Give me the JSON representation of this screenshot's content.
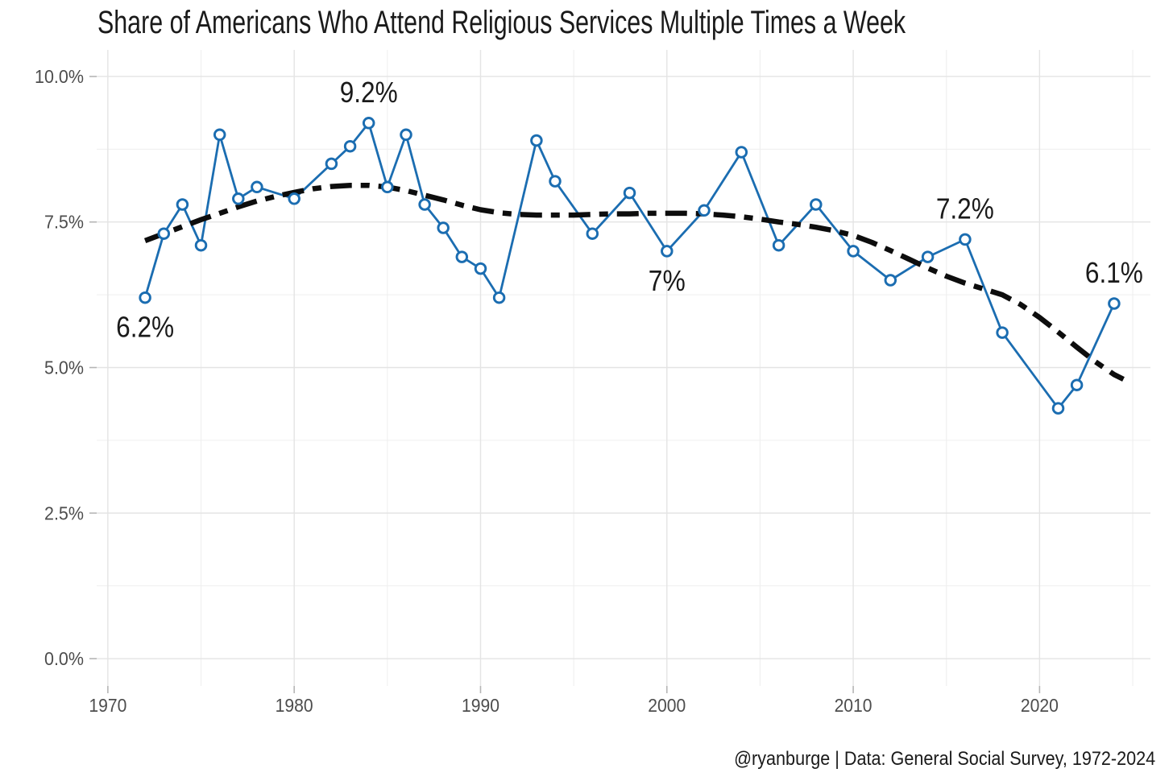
{
  "page": {
    "title": "Share of Americans Who Attend Religious Services Multiple Times a Week",
    "caption": "@ryanburge | Data: General Social Survey, 1972-2024"
  },
  "colors": {
    "series_blue": "#1B6DB1",
    "trend_black": "#0D0D0D",
    "grid_major": "#E4E4E4",
    "grid_minor": "#EFEFEF",
    "tick_mark": "#B5B5B5",
    "tick_label": "#4D4D4D",
    "annotation_text": "#1A1A1A",
    "marker_fill": "#FFFFFF",
    "background": "#FFFFFF"
  },
  "chart_data": {
    "type": "line",
    "title": "Share of Americans Who Attend Religious Services Multiple Times a Week",
    "xlabel": "",
    "ylabel": "",
    "grid": "major+minor",
    "legend": "none",
    "xlim": [
      1969.4,
      2025.95
    ],
    "ylim": [
      -0.47,
      10.456
    ],
    "x_major_ticks": [
      {
        "value": 1970,
        "label": "1970"
      },
      {
        "value": 1980,
        "label": "1980"
      },
      {
        "value": 1990,
        "label": "1990"
      },
      {
        "value": 2000,
        "label": "2000"
      },
      {
        "value": 2010,
        "label": "2010"
      },
      {
        "value": 2020,
        "label": "2020"
      }
    ],
    "x_minor_gridlines": [
      1975,
      1985,
      1995,
      2005,
      2015,
      2025
    ],
    "y_major_ticks": [
      {
        "value": 0.0,
        "label": "0.0%"
      },
      {
        "value": 2.5,
        "label": "2.5%"
      },
      {
        "value": 5.0,
        "label": "5.0%"
      },
      {
        "value": 7.5,
        "label": "7.5%"
      },
      {
        "value": 10.0,
        "label": "10.0%"
      }
    ],
    "y_minor_gridlines": [
      1.25,
      3.75,
      6.25,
      8.75
    ],
    "series": [
      {
        "name": "share-attending-multiple-times-week",
        "style": "solid-open-circles",
        "points": [
          [
            1972,
            6.2
          ],
          [
            1973,
            7.3
          ],
          [
            1974,
            7.8
          ],
          [
            1975,
            7.1
          ],
          [
            1976,
            9.0
          ],
          [
            1977,
            7.9
          ],
          [
            1978,
            8.1
          ],
          [
            1980,
            7.9
          ],
          [
            1982,
            8.5
          ],
          [
            1983,
            8.8
          ],
          [
            1984,
            9.2
          ],
          [
            1985,
            8.1
          ],
          [
            1986,
            9.0
          ],
          [
            1987,
            7.8
          ],
          [
            1988,
            7.4
          ],
          [
            1989,
            6.9
          ],
          [
            1990,
            6.7
          ],
          [
            1991,
            6.2
          ],
          [
            1993,
            8.9
          ],
          [
            1994,
            8.2
          ],
          [
            1996,
            7.3
          ],
          [
            1998,
            8.0
          ],
          [
            2000,
            7.0
          ],
          [
            2002,
            7.7
          ],
          [
            2004,
            8.7
          ],
          [
            2006,
            7.1
          ],
          [
            2008,
            7.8
          ],
          [
            2010,
            7.0
          ],
          [
            2012,
            6.5
          ],
          [
            2014,
            6.9
          ],
          [
            2016,
            7.2
          ],
          [
            2018,
            5.6
          ],
          [
            2021,
            4.3
          ],
          [
            2022,
            4.7
          ],
          [
            2024,
            6.1
          ]
        ]
      },
      {
        "name": "loess-smoothed-trend",
        "style": "dashed-smooth",
        "points": [
          [
            1972,
            7.18
          ],
          [
            1973,
            7.3
          ],
          [
            1974,
            7.42
          ],
          [
            1975,
            7.54
          ],
          [
            1976,
            7.65
          ],
          [
            1977,
            7.76
          ],
          [
            1978,
            7.86
          ],
          [
            1979,
            7.94
          ],
          [
            1980,
            8.01
          ],
          [
            1981,
            8.07
          ],
          [
            1982,
            8.11
          ],
          [
            1983,
            8.13
          ],
          [
            1984,
            8.13
          ],
          [
            1985,
            8.1
          ],
          [
            1986,
            8.04
          ],
          [
            1987,
            7.96
          ],
          [
            1988,
            7.88
          ],
          [
            1989,
            7.79
          ],
          [
            1990,
            7.71
          ],
          [
            1991,
            7.66
          ],
          [
            1992,
            7.63
          ],
          [
            1993,
            7.62
          ],
          [
            1994,
            7.62
          ],
          [
            1995,
            7.62
          ],
          [
            1996,
            7.63
          ],
          [
            1997,
            7.64
          ],
          [
            1998,
            7.64
          ],
          [
            1999,
            7.65
          ],
          [
            2000,
            7.65
          ],
          [
            2001,
            7.65
          ],
          [
            2002,
            7.64
          ],
          [
            2003,
            7.62
          ],
          [
            2004,
            7.59
          ],
          [
            2005,
            7.55
          ],
          [
            2006,
            7.5
          ],
          [
            2007,
            7.46
          ],
          [
            2008,
            7.41
          ],
          [
            2009,
            7.35
          ],
          [
            2010,
            7.27
          ],
          [
            2011,
            7.15
          ],
          [
            2012,
            7.01
          ],
          [
            2013,
            6.86
          ],
          [
            2014,
            6.71
          ],
          [
            2015,
            6.57
          ],
          [
            2016,
            6.45
          ],
          [
            2017,
            6.35
          ],
          [
            2018,
            6.25
          ],
          [
            2019,
            6.08
          ],
          [
            2020,
            5.86
          ],
          [
            2021,
            5.61
          ],
          [
            2022,
            5.35
          ],
          [
            2023,
            5.1
          ],
          [
            2024,
            4.88
          ],
          [
            2024.5,
            4.8
          ]
        ]
      }
    ],
    "annotations": [
      {
        "text": "6.2%",
        "year": 1972,
        "value": 6.2,
        "position": "below"
      },
      {
        "text": "9.2%",
        "year": 1984,
        "value": 9.2,
        "position": "above"
      },
      {
        "text": "7%",
        "year": 2000,
        "value": 7.0,
        "position": "below"
      },
      {
        "text": "7.2%",
        "year": 2016,
        "value": 7.2,
        "position": "above"
      },
      {
        "text": "6.1%",
        "year": 2024,
        "value": 6.1,
        "position": "above"
      }
    ]
  }
}
